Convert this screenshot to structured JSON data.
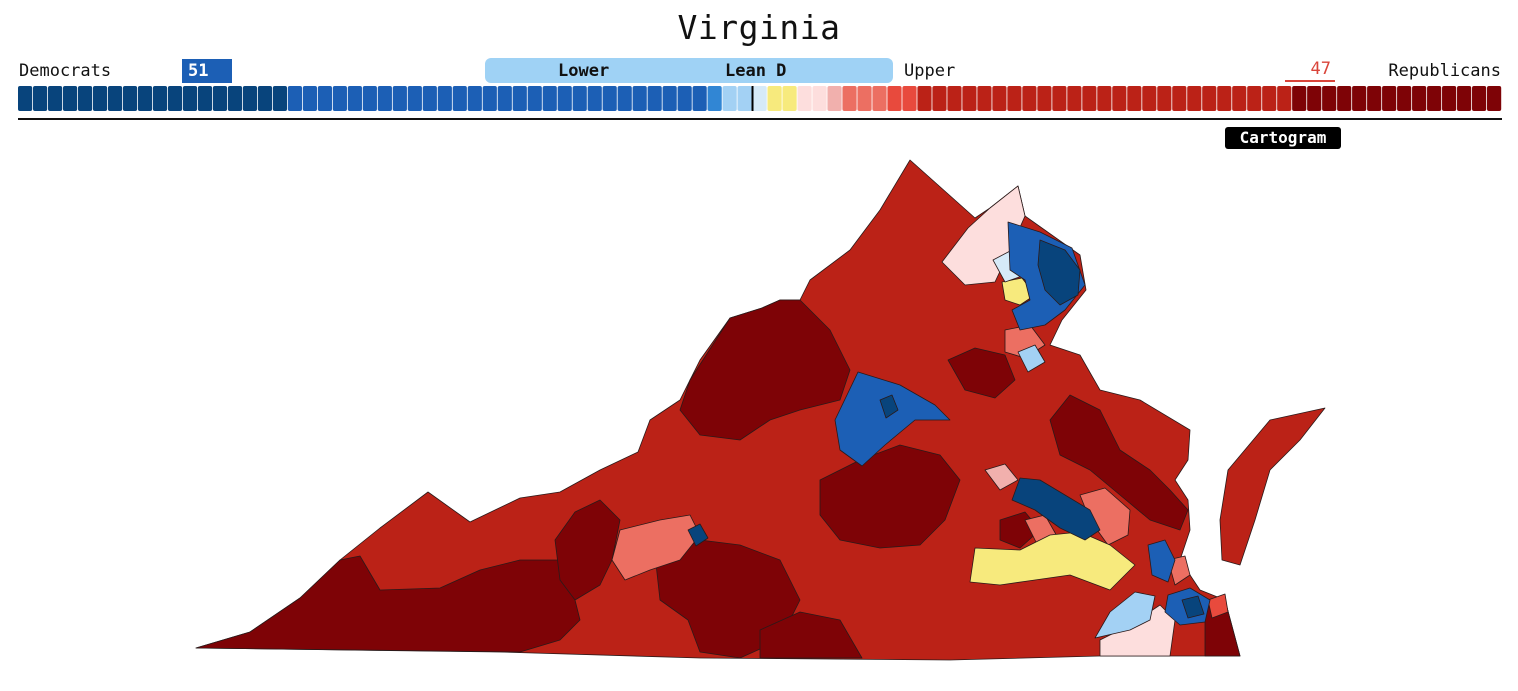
{
  "title": "Virginia",
  "parties": {
    "left": "Democrats",
    "right": "Republicans"
  },
  "seats": {
    "democrats": "51",
    "republicans": "47"
  },
  "chamber": {
    "lower": "Lower",
    "upper": "Upper",
    "rating": "Lean D"
  },
  "view_button": "Cartogram",
  "colors": {
    "safe_d": "#08447c",
    "likely_d": "#1c5fb5",
    "lean_d": "#3186d4",
    "tilt_d": "#a3d1f4",
    "toss_up_light": "#d6eaf8",
    "toss_up": "#f7ea7d",
    "tilt_r": "#fddedd",
    "lean_r_light": "#f1b0ad",
    "lean_r": "#ec6f62",
    "likely_r_bright": "#e84a3d",
    "likely_r": "#bb2217",
    "safe_r": "#7e0306"
  },
  "seat_distribution": [
    {
      "rating": "safe_d",
      "count": 18
    },
    {
      "rating": "likely_d",
      "count": 28
    },
    {
      "rating": "lean_d",
      "count": 1
    },
    {
      "rating": "tilt_d",
      "count": 2
    },
    {
      "rating": "toss_up_light",
      "count": 1
    },
    {
      "rating": "toss_up",
      "count": 2
    },
    {
      "rating": "tilt_r",
      "count": 2
    },
    {
      "rating": "lean_r_light",
      "count": 1
    },
    {
      "rating": "lean_r",
      "count": 3
    },
    {
      "rating": "likely_r_bright",
      "count": 2
    },
    {
      "rating": "likely_r",
      "count": 25
    },
    {
      "rating": "safe_r",
      "count": 14
    }
  ]
}
